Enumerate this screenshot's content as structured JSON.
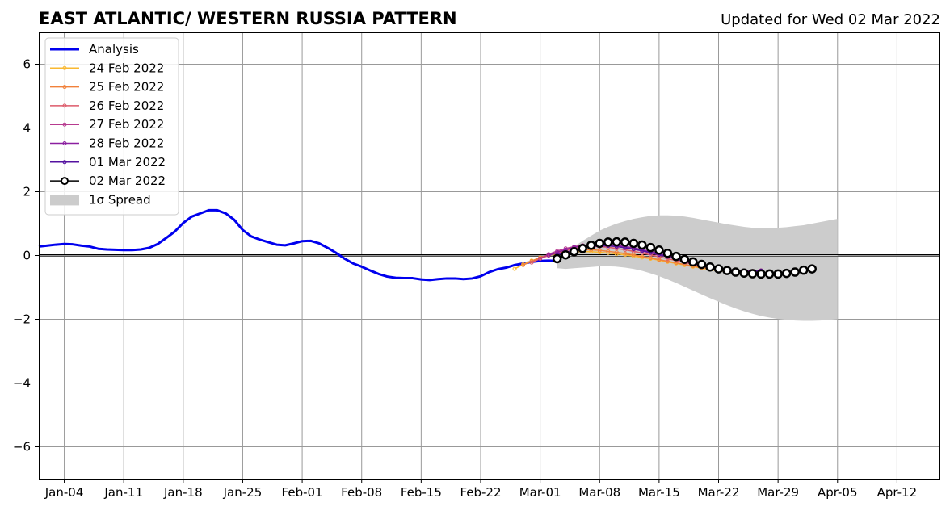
{
  "chart_data": {
    "type": "line",
    "title": "EAST ATLANTIC/ WESTERN RUSSIA PATTERN",
    "subtitle": "Updated for Wed 02 Mar 2022",
    "xlabel": "",
    "ylabel": "",
    "xlim": [
      "2022-01-01",
      "2022-04-17"
    ],
    "ylim": [
      -7,
      7
    ],
    "x_ticks": [
      "2022-01-04",
      "2022-01-11",
      "2022-01-18",
      "2022-01-25",
      "2022-02-01",
      "2022-02-08",
      "2022-02-15",
      "2022-02-22",
      "2022-03-01",
      "2022-03-08",
      "2022-03-15",
      "2022-03-22",
      "2022-03-29",
      "2022-04-05",
      "2022-04-12"
    ],
    "x_tick_labels": [
      "Jan-04",
      "Jan-11",
      "Jan-18",
      "Jan-25",
      "Feb-01",
      "Feb-08",
      "Feb-15",
      "Feb-22",
      "Mar-01",
      "Mar-08",
      "Mar-15",
      "Mar-22",
      "Mar-29",
      "Apr-05",
      "Apr-12"
    ],
    "y_ticks": [
      -6,
      -4,
      -2,
      0,
      2,
      4,
      6
    ],
    "y_tick_labels": [
      "−6",
      "−4",
      "−2",
      "0",
      "2",
      "4",
      "6"
    ],
    "grid": true,
    "zero_line": true,
    "legend_position": "top-left",
    "analysis": {
      "name": "Analysis",
      "color": "#0000ee",
      "start": "2022-01-01",
      "values": [
        0.28,
        0.31,
        0.34,
        0.36,
        0.35,
        0.31,
        0.28,
        0.21,
        0.19,
        0.18,
        0.17,
        0.17,
        0.19,
        0.24,
        0.36,
        0.55,
        0.75,
        1.02,
        1.22,
        1.32,
        1.42,
        1.42,
        1.32,
        1.12,
        0.8,
        0.6,
        0.5,
        0.42,
        0.34,
        0.32,
        0.38,
        0.45,
        0.46,
        0.38,
        0.24,
        0.08,
        -0.1,
        -0.25,
        -0.35,
        -0.47,
        -0.58,
        -0.66,
        -0.7,
        -0.71,
        -0.71,
        -0.75,
        -0.77,
        -0.74,
        -0.72,
        -0.72,
        -0.74,
        -0.72,
        -0.65,
        -0.52,
        -0.43,
        -0.38,
        -0.3,
        -0.25,
        -0.2,
        -0.17,
        -0.16,
        -0.17
      ]
    },
    "forecasts": [
      {
        "name": "24 Feb 2022",
        "color": "#f9b830",
        "start": "2022-02-26",
        "values": [
          -0.42,
          -0.28,
          -0.16,
          -0.08,
          0.0,
          0.06,
          0.1,
          0.12,
          0.12,
          0.12,
          0.1,
          0.08,
          0.05,
          0.02,
          -0.02,
          -0.06,
          -0.1,
          -0.15,
          -0.2,
          -0.25,
          -0.3,
          -0.35,
          -0.4,
          -0.44,
          -0.48,
          -0.5,
          -0.52,
          -0.52,
          -0.5,
          -0.48
        ]
      },
      {
        "name": "25 Feb 2022",
        "color": "#f1813b",
        "start": "2022-02-27",
        "values": [
          -0.3,
          -0.18,
          -0.06,
          0.02,
          0.08,
          0.12,
          0.16,
          0.18,
          0.18,
          0.16,
          0.13,
          0.1,
          0.06,
          0.02,
          -0.03,
          -0.08,
          -0.13,
          -0.18,
          -0.23,
          -0.28,
          -0.33,
          -0.38,
          -0.42,
          -0.45,
          -0.48,
          -0.5,
          -0.5,
          -0.49,
          -0.47
        ]
      },
      {
        "name": "26 Feb 2022",
        "color": "#dd5a6a",
        "start": "2022-02-28",
        "values": [
          -0.22,
          -0.1,
          0.0,
          0.08,
          0.16,
          0.22,
          0.26,
          0.28,
          0.28,
          0.26,
          0.22,
          0.18,
          0.13,
          0.08,
          0.02,
          -0.04,
          -0.1,
          -0.16,
          -0.22,
          -0.28,
          -0.33,
          -0.38,
          -0.42,
          -0.46,
          -0.48,
          -0.5,
          -0.49,
          -0.47
        ]
      },
      {
        "name": "27 Feb 2022",
        "color": "#b73a8f",
        "start": "2022-03-01",
        "values": [
          -0.1,
          0.04,
          0.14,
          0.22,
          0.28,
          0.32,
          0.34,
          0.34,
          0.32,
          0.29,
          0.25,
          0.2,
          0.14,
          0.08,
          0.02,
          -0.04,
          -0.11,
          -0.17,
          -0.24,
          -0.3,
          -0.35,
          -0.4,
          -0.44,
          -0.47,
          -0.49,
          -0.49,
          -0.47
        ]
      },
      {
        "name": "28 Feb 2022",
        "color": "#8b1fa0",
        "start": "2022-03-02",
        "values": [
          0.0,
          0.1,
          0.18,
          0.26,
          0.3,
          0.33,
          0.34,
          0.34,
          0.32,
          0.28,
          0.24,
          0.18,
          0.12,
          0.06,
          -0.01,
          -0.08,
          -0.15,
          -0.22,
          -0.29,
          -0.35,
          -0.4,
          -0.44,
          -0.47,
          -0.49,
          -0.49,
          -0.47
        ]
      },
      {
        "name": "01 Mar 2022",
        "color": "#5412a0",
        "start": "2022-03-03",
        "values": [
          0.02,
          0.1,
          0.18,
          0.24,
          0.28,
          0.3,
          0.3,
          0.28,
          0.24,
          0.2,
          0.15,
          0.09,
          0.03,
          -0.04,
          -0.11,
          -0.18,
          -0.25,
          -0.32,
          -0.38,
          -0.43,
          -0.47,
          -0.5,
          -0.51,
          -0.5,
          -0.48
        ]
      }
    ],
    "current": {
      "name": "02 Mar 2022",
      "color": "#000000",
      "start": "2022-03-03",
      "values": [
        -0.1,
        0.02,
        0.12,
        0.22,
        0.32,
        0.38,
        0.42,
        0.43,
        0.42,
        0.38,
        0.33,
        0.25,
        0.17,
        0.07,
        -0.03,
        -0.12,
        -0.2,
        -0.28,
        -0.36,
        -0.42,
        -0.47,
        -0.52,
        -0.55,
        -0.57,
        -0.58,
        -0.58,
        -0.58,
        -0.56,
        -0.52,
        -0.46,
        -0.42
      ]
    },
    "spread": {
      "name": "1σ Spread",
      "color": "#cccccc",
      "start": "2022-03-03",
      "upper": [
        -0.12,
        0.08,
        0.28,
        0.46,
        0.62,
        0.78,
        0.9,
        1.0,
        1.08,
        1.15,
        1.2,
        1.24,
        1.26,
        1.26,
        1.25,
        1.22,
        1.18,
        1.13,
        1.08,
        1.03,
        0.98,
        0.94,
        0.9,
        0.87,
        0.86,
        0.86,
        0.87,
        0.89,
        0.92,
        0.95,
        1.0,
        1.05,
        1.1,
        1.15
      ],
      "lower": [
        -0.4,
        -0.42,
        -0.4,
        -0.38,
        -0.36,
        -0.34,
        -0.34,
        -0.35,
        -0.38,
        -0.42,
        -0.48,
        -0.56,
        -0.65,
        -0.75,
        -0.86,
        -0.98,
        -1.1,
        -1.22,
        -1.34,
        -1.45,
        -1.56,
        -1.66,
        -1.75,
        -1.83,
        -1.9,
        -1.95,
        -1.99,
        -2.02,
        -2.04,
        -2.05,
        -2.05,
        -2.04,
        -2.02,
        -2.0
      ]
    }
  }
}
